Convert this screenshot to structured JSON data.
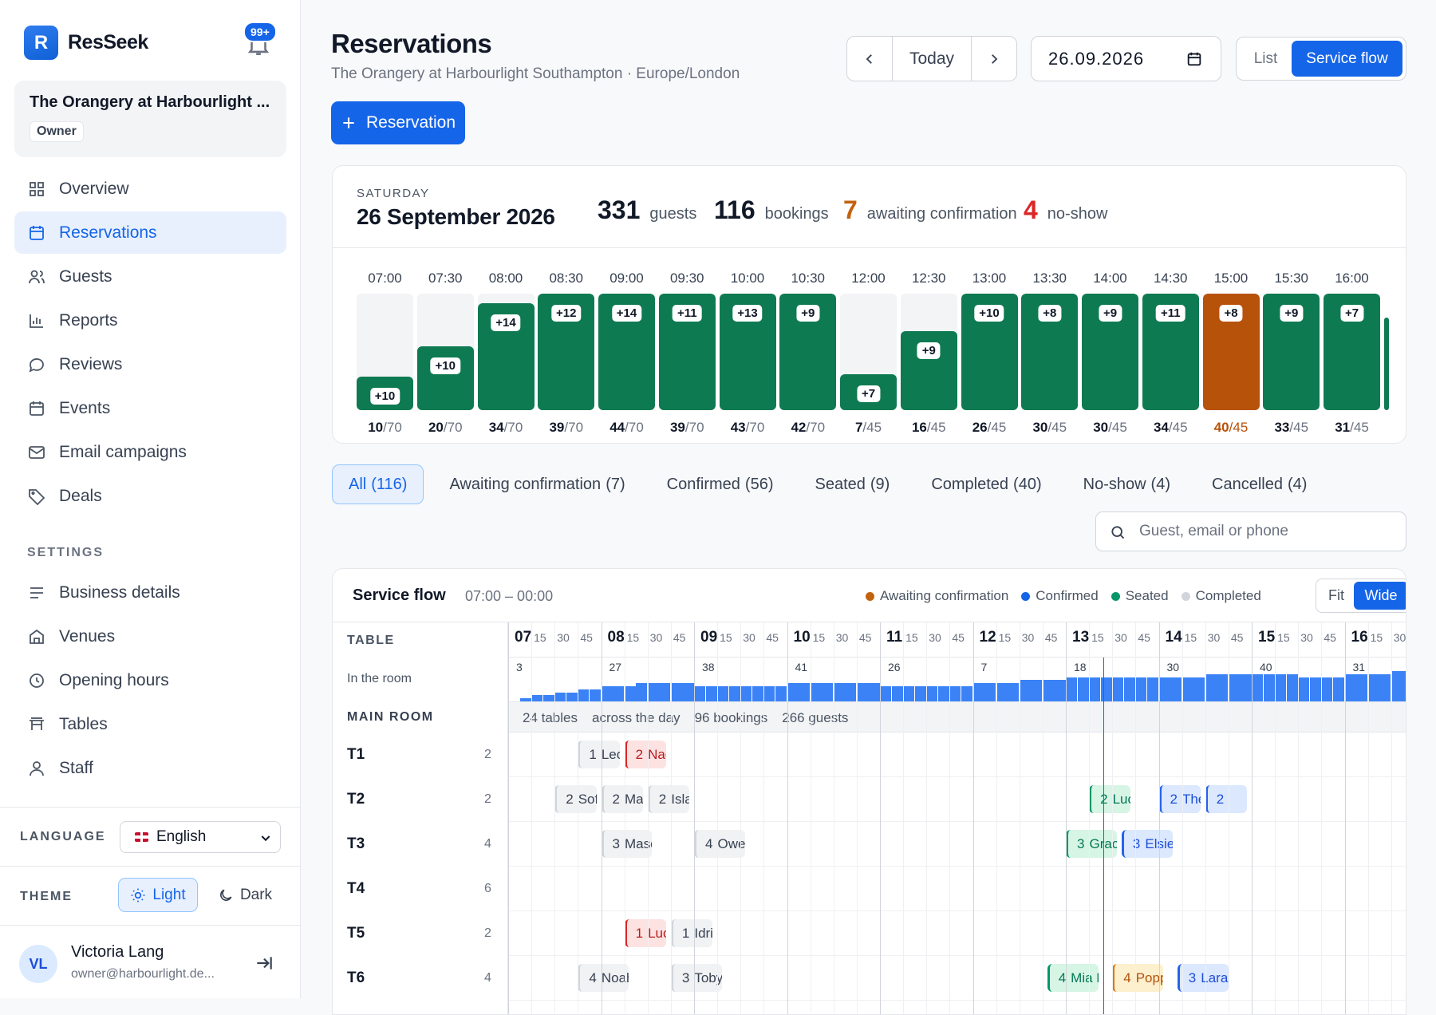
{
  "app": {
    "brand": "ResSeek",
    "logo_letter": "R",
    "notifications": "99+"
  },
  "venue": {
    "name": "The Orangery at Harbourlight ...",
    "role": "Owner"
  },
  "nav": [
    {
      "id": "overview",
      "label": "Overview",
      "icon": "grid-icon"
    },
    {
      "id": "reservations",
      "label": "Reservations",
      "icon": "calendar-icon",
      "active": true
    },
    {
      "id": "guests",
      "label": "Guests",
      "icon": "users-icon"
    },
    {
      "id": "reports",
      "label": "Reports",
      "icon": "bar-chart-icon"
    },
    {
      "id": "reviews",
      "label": "Reviews",
      "icon": "chat-bubble-icon"
    },
    {
      "id": "events",
      "label": "Events",
      "icon": "calendar-icon"
    },
    {
      "id": "email",
      "label": "Email campaigns",
      "icon": "mail-icon"
    },
    {
      "id": "deals",
      "label": "Deals",
      "icon": "tag-icon"
    }
  ],
  "settings": {
    "heading": "SETTINGS",
    "items": [
      {
        "id": "business",
        "label": "Business details",
        "icon": "lines-icon"
      },
      {
        "id": "venues",
        "label": "Venues",
        "icon": "building-icon"
      },
      {
        "id": "hours",
        "label": "Opening hours",
        "icon": "clock-icon"
      },
      {
        "id": "tables",
        "label": "Tables",
        "icon": "table-icon"
      },
      {
        "id": "staff",
        "label": "Staff",
        "icon": "user-icon"
      }
    ]
  },
  "language": {
    "label": "LANGUAGE",
    "value": "English"
  },
  "theme": {
    "label": "THEME",
    "light": "Light",
    "dark": "Dark"
  },
  "user": {
    "initials": "VL",
    "name": "Victoria Lang",
    "email": "owner@harbourlight.de..."
  },
  "header": {
    "title": "Reservations",
    "subtitle": "The Orangery at Harbourlight Southampton · Europe/London",
    "add_label": "Reservation",
    "today": "Today",
    "date": "26.09.2026",
    "view_list": "List",
    "view_flow": "Service flow"
  },
  "summary": {
    "day": "SATURDAY",
    "date": "26 September 2026",
    "guests_value": "331",
    "guests_label": "guests",
    "bookings_value": "116",
    "bookings_label": "bookings",
    "awaiting_value": "7",
    "awaiting_label": "awaiting confirmation",
    "noshow_value": "4",
    "noshow_label": "no-show"
  },
  "chart_data": {
    "type": "bar",
    "categories": [
      "07:00",
      "07:30",
      "08:00",
      "08:30",
      "09:00",
      "09:30",
      "10:00",
      "10:30",
      "12:00",
      "12:30",
      "13:00",
      "13:30",
      "14:00",
      "14:30",
      "15:00",
      "15:30",
      "16:00"
    ],
    "values": [
      10,
      20,
      34,
      39,
      44,
      39,
      43,
      42,
      7,
      16,
      26,
      30,
      30,
      34,
      40,
      33,
      31
    ],
    "capacity": [
      70,
      70,
      70,
      70,
      70,
      70,
      70,
      70,
      45,
      45,
      45,
      45,
      45,
      45,
      45,
      45,
      45
    ],
    "deltas": [
      "+10",
      "+10",
      "+14",
      "+12",
      "+14",
      "+11",
      "+13",
      "+9",
      "+7",
      "+9",
      "+10",
      "+8",
      "+9",
      "+11",
      "+8",
      "+9",
      "+7"
    ],
    "peak_index": 14,
    "colors": {
      "bar": "#0e7a52",
      "peak": "#b7520b"
    }
  },
  "tabs": [
    {
      "label": "All",
      "count": "(116)",
      "active": true
    },
    {
      "label": "Awaiting confirmation",
      "count": "(7)"
    },
    {
      "label": "Confirmed",
      "count": "(56)"
    },
    {
      "label": "Seated",
      "count": "(9)"
    },
    {
      "label": "Completed",
      "count": "(40)"
    },
    {
      "label": "No-show",
      "count": "(4)"
    },
    {
      "label": "Cancelled",
      "count": "(4)"
    }
  ],
  "search": {
    "placeholder": "Guest, email or phone"
  },
  "flow": {
    "title": "Service flow",
    "range": "07:00 – 00:00",
    "legend": {
      "awaiting": "Awaiting confirmation",
      "confirmed": "Confirmed",
      "seated": "Seated",
      "completed": "Completed"
    },
    "fit": "Fit",
    "wide": "Wide",
    "table_heading": "TABLE",
    "room_label": "In the room",
    "hours": [
      "07",
      "08",
      "09",
      "10",
      "11",
      "12",
      "13",
      "14",
      "15",
      "16"
    ],
    "quarters": [
      "15",
      "30",
      "45"
    ],
    "start_hour": 7,
    "now_time": 13.4,
    "occupancy": [
      0,
      1,
      2,
      2,
      3,
      3,
      4,
      4,
      5,
      5,
      5,
      6,
      6,
      6,
      6,
      6,
      5,
      5,
      5,
      5,
      5,
      5,
      5,
      5,
      6,
      6,
      6,
      6,
      6,
      6,
      6,
      6,
      5,
      5,
      5,
      5,
      5,
      5,
      5,
      5,
      6,
      6,
      6,
      6,
      7,
      7,
      7,
      7,
      8,
      8,
      8,
      8,
      8,
      8,
      8,
      8,
      8,
      8,
      8,
      8,
      9,
      9,
      9,
      9,
      9,
      9,
      9,
      9,
      8,
      8,
      8,
      8,
      9,
      9,
      9,
      9,
      10,
      10,
      10,
      10
    ],
    "occupancy_max": 10,
    "occupancy_labels": [
      {
        "time": 7.0,
        "text": "3"
      },
      {
        "time": 8.0,
        "text": "27"
      },
      {
        "time": 9.0,
        "text": "38"
      },
      {
        "time": 10.0,
        "text": "41"
      },
      {
        "time": 11.0,
        "text": "26"
      },
      {
        "time": 12.0,
        "text": "7"
      },
      {
        "time": 13.0,
        "text": "18"
      },
      {
        "time": 14.0,
        "text": "30"
      },
      {
        "time": 15.0,
        "text": "40"
      },
      {
        "time": 16.0,
        "text": "31"
      }
    ],
    "room": {
      "name": "MAIN ROOM",
      "tables": "24 tables",
      "across": "across the day",
      "bookings": "96 bookings",
      "guests": "266 guests"
    },
    "rows": [
      {
        "name": "T1",
        "cap": "2",
        "bookings": [
          {
            "start": 7.75,
            "end": 8.25,
            "party": "1",
            "guest": "Leo Martinez",
            "status": "completed",
            "note": false
          },
          {
            "start": 8.25,
            "end": 8.75,
            "party": "2",
            "guest": "Nadia Haddad",
            "status": "noshow",
            "note": false
          }
        ]
      },
      {
        "name": "T2",
        "cap": "2",
        "bookings": [
          {
            "start": 7.5,
            "end": 8.0,
            "party": "2",
            "guest": "Sofia Rossi",
            "status": "completed",
            "note": false
          },
          {
            "start": 8.0,
            "end": 8.5,
            "party": "2",
            "guest": "Maya Kaur",
            "status": "completed",
            "note": true
          },
          {
            "start": 8.5,
            "end": 9.0,
            "party": "2",
            "guest": "Isla Murray",
            "status": "completed",
            "note": true
          },
          {
            "start": 13.25,
            "end": 13.75,
            "party": "2",
            "guest": "Lucas Novak",
            "status": "seated",
            "note": true
          },
          {
            "start": 14.0,
            "end": 14.5,
            "party": "2",
            "guest": "Theo Wallace",
            "status": "confirmed",
            "note": true
          },
          {
            "start": 14.5,
            "end": 15.0,
            "party": "2",
            "guest": "",
            "status": "confirmed",
            "note": false
          }
        ]
      },
      {
        "name": "T3",
        "cap": "4",
        "bookings": [
          {
            "start": 8.0,
            "end": 8.6,
            "party": "3",
            "guest": "Mason Ahmed",
            "status": "completed",
            "note": true
          },
          {
            "start": 9.0,
            "end": 9.6,
            "party": "4",
            "guest": "Owen Griffiths",
            "status": "completed",
            "note": true
          },
          {
            "start": 13.0,
            "end": 13.6,
            "party": "3",
            "guest": "Grace O'Neill",
            "status": "seated",
            "note": true
          },
          {
            "start": 13.6,
            "end": 14.2,
            "party": "3",
            "guest": "Elsie Morgan",
            "status": "confirmed",
            "note": true
          }
        ]
      },
      {
        "name": "T4",
        "cap": "6",
        "bookings": []
      },
      {
        "name": "T5",
        "cap": "2",
        "bookings": [
          {
            "start": 8.25,
            "end": 8.75,
            "party": "1",
            "guest": "Lucas Novak",
            "status": "noshow",
            "note": true
          },
          {
            "start": 8.75,
            "end": 9.25,
            "party": "1",
            "guest": "Idris Mahmood",
            "status": "completed",
            "note": false
          }
        ]
      },
      {
        "name": "T6",
        "cap": "4",
        "bookings": [
          {
            "start": 7.75,
            "end": 8.35,
            "party": "4",
            "guest": "Noah Williams",
            "status": "completed",
            "note": true
          },
          {
            "start": 8.75,
            "end": 9.35,
            "party": "3",
            "guest": "Toby Warren",
            "status": "completed",
            "note": false
          },
          {
            "start": 12.8,
            "end": 13.4,
            "party": "4",
            "guest": "Mia Robertson",
            "status": "seated",
            "note": true
          },
          {
            "start": 13.5,
            "end": 14.1,
            "party": "4",
            "guest": "Poppy Sinclair",
            "status": "awaiting",
            "note": true
          },
          {
            "start": 14.2,
            "end": 14.8,
            "party": "3",
            "guest": "Lara Pe",
            "status": "confirmed",
            "note": false
          }
        ]
      }
    ]
  }
}
